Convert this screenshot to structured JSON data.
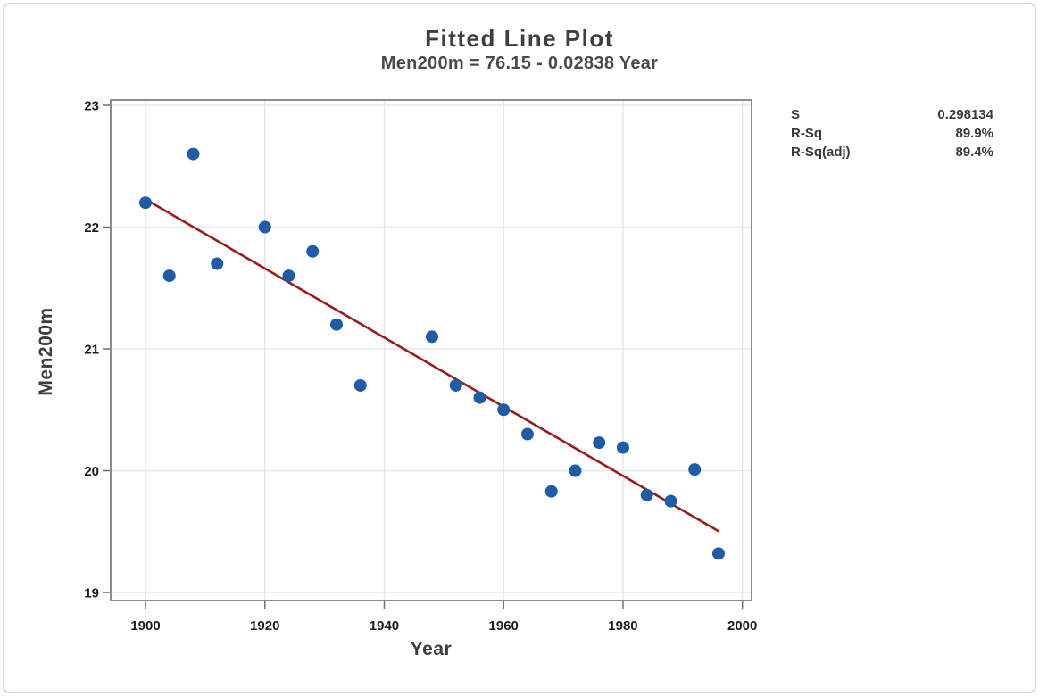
{
  "chart_data": {
    "type": "scatter",
    "title": "Fitted Line Plot",
    "subtitle": "Men200m = 76.15 - 0.02838 Year",
    "xlabel": "Year",
    "ylabel": "Men200m",
    "x_ticks": [
      1900,
      1920,
      1940,
      1960,
      1980,
      2000
    ],
    "y_ticks": [
      23,
      22,
      21,
      20,
      19
    ],
    "xlim": [
      1894,
      2001.5
    ],
    "ylim": [
      18.93,
      23.05
    ],
    "grid": true,
    "legend_position": "none",
    "points": [
      [
        1900,
        22.2
      ],
      [
        1904,
        21.6
      ],
      [
        1908,
        22.6
      ],
      [
        1912,
        21.7
      ],
      [
        1920,
        22.0
      ],
      [
        1924,
        21.6
      ],
      [
        1928,
        21.8
      ],
      [
        1932,
        21.2
      ],
      [
        1936,
        20.7
      ],
      [
        1948,
        21.1
      ],
      [
        1952,
        20.7
      ],
      [
        1956,
        20.6
      ],
      [
        1960,
        20.5
      ],
      [
        1964,
        20.3
      ],
      [
        1968,
        19.83
      ],
      [
        1972,
        20.0
      ],
      [
        1976,
        20.23
      ],
      [
        1980,
        20.19
      ],
      [
        1984,
        19.8
      ],
      [
        1988,
        19.75
      ],
      [
        1992,
        20.01
      ],
      [
        1996,
        19.32
      ]
    ],
    "fit_line": {
      "equation": "Men200m = 76.15 - 0.02838 Year",
      "intercept": 76.15,
      "slope": -0.02838,
      "x_start": 1900,
      "x_end": 1996
    },
    "stats": [
      {
        "label": "S",
        "value": "0.298134"
      },
      {
        "label": "R-Sq",
        "value": "89.9%"
      },
      {
        "label": "R-Sq(adj)",
        "value": "89.4%"
      }
    ],
    "colors": {
      "point": "#1e5ba8",
      "fit_line": "#9b1b1b",
      "grid": "#e7e7e7",
      "frame": "#8c8c8c",
      "tick": "#6f6f6f",
      "title_text": "#3f3f3f",
      "tick_text": "#1c1c1c",
      "border": "#d5d5d5"
    }
  }
}
